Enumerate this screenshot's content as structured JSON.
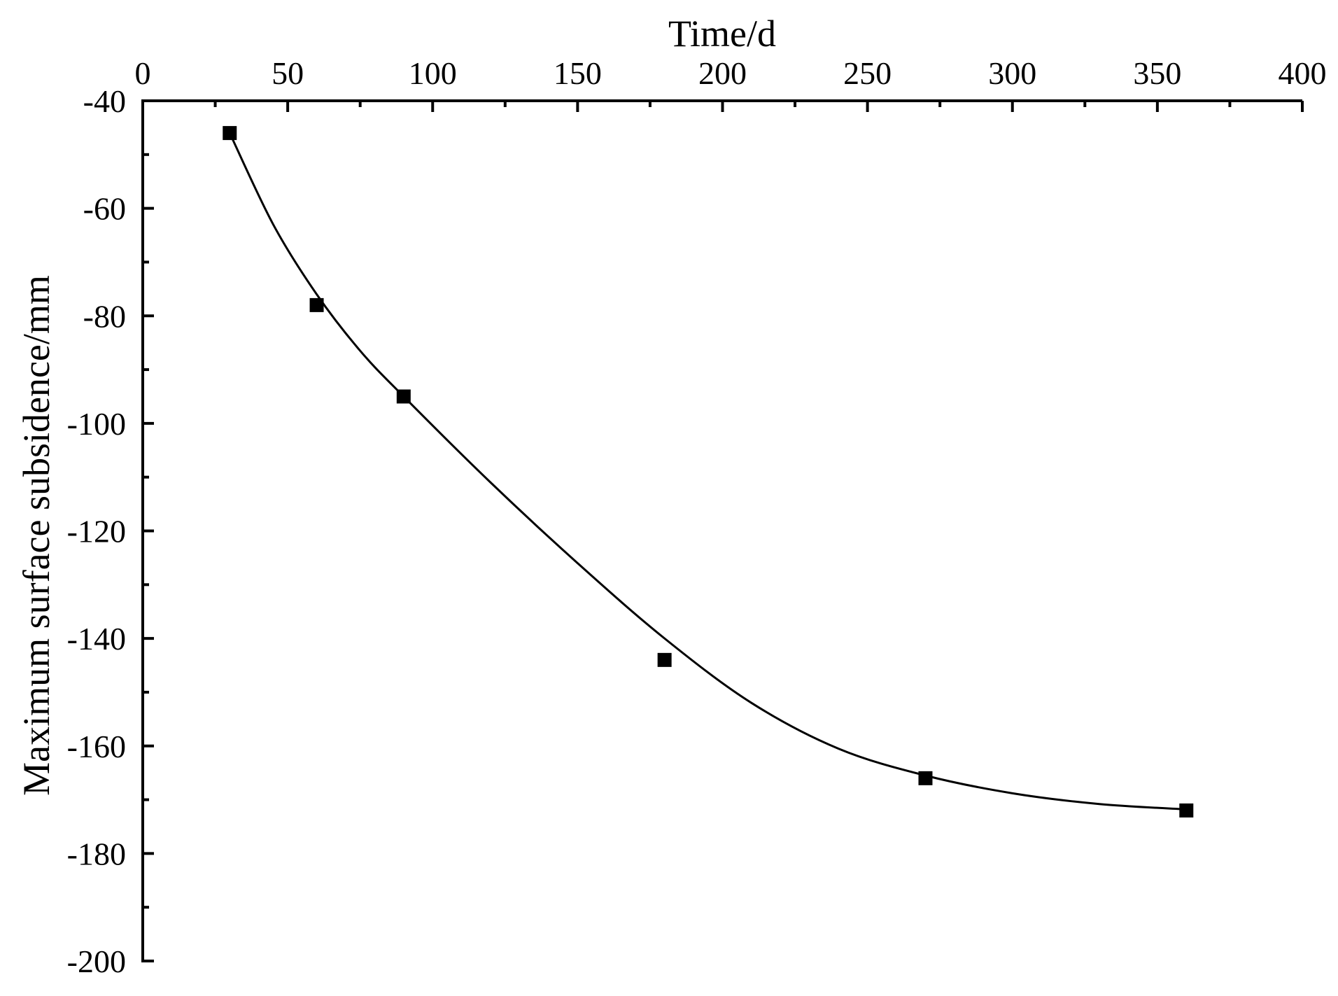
{
  "chart_data": {
    "type": "scatter",
    "xlabel": "Time/d",
    "ylabel": "Maximum surface subsidence/mm",
    "x_axis_position": "top",
    "xlim": [
      0,
      400
    ],
    "ylim": [
      -200,
      -40
    ],
    "x_ticks": [
      0,
      50,
      100,
      150,
      200,
      250,
      300,
      350,
      400
    ],
    "y_ticks": [
      -40,
      -60,
      -80,
      -100,
      -120,
      -140,
      -160,
      -180,
      -200
    ],
    "grid": false,
    "legend": "none",
    "marker": "square",
    "color": "#000000",
    "series": [
      {
        "x": [
          30,
          60,
          90,
          180,
          270,
          360
        ],
        "y": [
          -46,
          -78,
          -95,
          -144,
          -166,
          -172
        ]
      }
    ],
    "fit_curve": {
      "x": [
        30,
        45,
        60,
        75,
        90,
        120,
        150,
        180,
        210,
        240,
        270,
        300,
        330,
        360
      ],
      "y": [
        -46,
        -63,
        -76,
        -86.5,
        -95,
        -111,
        -126,
        -140,
        -152,
        -160.5,
        -165.5,
        -168.8,
        -170.8,
        -171.8
      ]
    }
  }
}
